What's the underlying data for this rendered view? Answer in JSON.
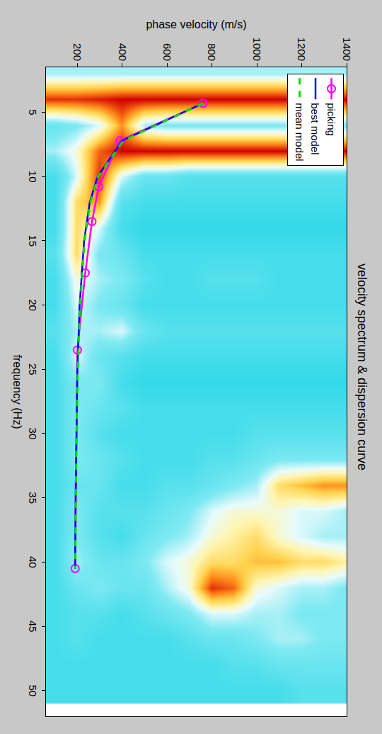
{
  "chart_data": {
    "type": "line",
    "title": "velocity spectrum & dispersion curve",
    "x_label": "frequency (Hz)",
    "y_label": "phase velocity (m/s)",
    "xlim": [
      1.5,
      52
    ],
    "xticks": [
      5,
      10,
      15,
      20,
      25,
      30,
      35,
      40,
      45,
      50
    ],
    "ylim": [
      60,
      1400
    ],
    "yticks": [
      200,
      400,
      600,
      800,
      1000,
      1200,
      1400
    ],
    "grid": false,
    "legend": "upper left",
    "series": [
      {
        "name": "picking",
        "color": "#ff00ff",
        "marker": "circle-open",
        "line_style": "solid",
        "x": [
          4.3,
          7.2,
          10.8,
          13.5,
          17.5,
          23.5,
          40.5
        ],
        "values": [
          760,
          390,
          295,
          265,
          235,
          200,
          190
        ]
      },
      {
        "name": "best model",
        "color": "#0000ff",
        "line_style": "solid",
        "x": [
          4.3,
          7.2,
          10,
          12,
          15,
          20,
          25,
          30,
          35,
          40.5
        ],
        "values": [
          760,
          400,
          290,
          255,
          230,
          210,
          200,
          195,
          192,
          190
        ]
      },
      {
        "name": "mean model",
        "color": "#00dd00",
        "line_style": "dashed",
        "x": [
          4.3,
          7.2,
          10,
          12,
          15,
          20,
          25,
          30,
          35,
          40.5
        ],
        "values": [
          760,
          405,
          292,
          258,
          232,
          212,
          202,
          196,
          193,
          191
        ]
      }
    ],
    "spectrum": {
      "x": [
        2,
        4,
        6,
        8,
        10,
        12,
        14,
        16,
        18,
        20,
        22,
        24,
        26,
        28,
        30,
        32,
        34,
        36,
        38,
        40,
        42,
        44,
        46,
        48,
        50
      ],
      "y": [
        100,
        200,
        300,
        400,
        500,
        600,
        700,
        800,
        900,
        1000,
        1100,
        1200,
        1300,
        1400
      ],
      "z": [
        [
          0.5,
          0.9,
          0.4,
          0.5,
          0.3,
          0.3,
          0.3,
          0.35,
          0.3,
          0.3,
          0.35,
          0.3,
          0.3,
          0.3,
          0.3,
          0.3,
          0.3,
          0.3,
          0.3,
          0.3,
          0.3,
          0.3,
          0.3,
          0.3,
          0.3
        ],
        [
          0.5,
          0.9,
          0.45,
          0.6,
          0.55,
          0.7,
          0.7,
          0.7,
          0.6,
          0.55,
          0.5,
          0.55,
          0.45,
          0.45,
          0.45,
          0.45,
          0.4,
          0.45,
          0.45,
          0.5,
          0.4,
          0.35,
          0.35,
          0.3,
          0.3
        ],
        [
          0.5,
          0.92,
          0.55,
          0.85,
          0.9,
          0.8,
          0.55,
          0.45,
          0.5,
          0.45,
          0.5,
          0.4,
          0.45,
          0.4,
          0.35,
          0.4,
          0.4,
          0.35,
          0.35,
          0.4,
          0.45,
          0.35,
          0.3,
          0.3,
          0.3
        ],
        [
          0.5,
          0.95,
          0.8,
          0.95,
          0.55,
          0.35,
          0.3,
          0.4,
          0.45,
          0.4,
          0.55,
          0.35,
          0.3,
          0.35,
          0.3,
          0.35,
          0.3,
          0.35,
          0.3,
          0.4,
          0.4,
          0.3,
          0.3,
          0.3,
          0.3
        ],
        [
          0.5,
          0.95,
          0.5,
          0.95,
          0.4,
          0.3,
          0.25,
          0.3,
          0.35,
          0.3,
          0.4,
          0.3,
          0.25,
          0.3,
          0.3,
          0.3,
          0.3,
          0.35,
          0.4,
          0.45,
          0.4,
          0.35,
          0.3,
          0.3,
          0.3
        ],
        [
          0.5,
          0.95,
          0.45,
          0.95,
          0.4,
          0.3,
          0.25,
          0.3,
          0.3,
          0.3,
          0.35,
          0.3,
          0.25,
          0.3,
          0.3,
          0.3,
          0.35,
          0.4,
          0.45,
          0.55,
          0.5,
          0.4,
          0.3,
          0.3,
          0.3
        ],
        [
          0.5,
          0.95,
          0.45,
          0.95,
          0.35,
          0.3,
          0.25,
          0.3,
          0.3,
          0.3,
          0.35,
          0.3,
          0.25,
          0.3,
          0.3,
          0.3,
          0.35,
          0.45,
          0.5,
          0.6,
          0.6,
          0.45,
          0.35,
          0.3,
          0.3
        ],
        [
          0.5,
          0.95,
          0.45,
          0.95,
          0.35,
          0.3,
          0.25,
          0.3,
          0.35,
          0.3,
          0.35,
          0.3,
          0.25,
          0.3,
          0.3,
          0.35,
          0.4,
          0.55,
          0.6,
          0.7,
          0.9,
          0.55,
          0.4,
          0.3,
          0.3
        ],
        [
          0.5,
          0.95,
          0.45,
          0.95,
          0.35,
          0.3,
          0.25,
          0.3,
          0.35,
          0.3,
          0.35,
          0.3,
          0.25,
          0.3,
          0.3,
          0.35,
          0.45,
          0.6,
          0.65,
          0.7,
          0.85,
          0.55,
          0.4,
          0.35,
          0.3
        ],
        [
          0.5,
          0.95,
          0.45,
          0.95,
          0.35,
          0.3,
          0.25,
          0.3,
          0.35,
          0.3,
          0.35,
          0.3,
          0.25,
          0.3,
          0.35,
          0.4,
          0.5,
          0.6,
          0.7,
          0.75,
          0.6,
          0.5,
          0.45,
          0.35,
          0.3
        ],
        [
          0.5,
          0.95,
          0.45,
          0.95,
          0.35,
          0.3,
          0.25,
          0.3,
          0.3,
          0.3,
          0.35,
          0.3,
          0.25,
          0.3,
          0.35,
          0.45,
          0.7,
          0.6,
          0.6,
          0.75,
          0.55,
          0.5,
          0.5,
          0.4,
          0.3
        ],
        [
          0.5,
          0.95,
          0.45,
          0.95,
          0.35,
          0.3,
          0.25,
          0.3,
          0.3,
          0.3,
          0.35,
          0.3,
          0.25,
          0.3,
          0.35,
          0.45,
          0.75,
          0.55,
          0.55,
          0.7,
          0.5,
          0.45,
          0.5,
          0.4,
          0.35
        ],
        [
          0.5,
          0.95,
          0.45,
          0.95,
          0.35,
          0.3,
          0.25,
          0.3,
          0.3,
          0.3,
          0.35,
          0.3,
          0.25,
          0.3,
          0.35,
          0.45,
          0.8,
          0.55,
          0.5,
          0.7,
          0.5,
          0.45,
          0.45,
          0.4,
          0.35
        ],
        [
          0.5,
          0.95,
          0.45,
          0.95,
          0.35,
          0.3,
          0.25,
          0.3,
          0.3,
          0.3,
          0.35,
          0.3,
          0.25,
          0.3,
          0.35,
          0.45,
          0.8,
          0.5,
          0.5,
          0.65,
          0.45,
          0.45,
          0.45,
          0.4,
          0.35
        ]
      ]
    }
  }
}
